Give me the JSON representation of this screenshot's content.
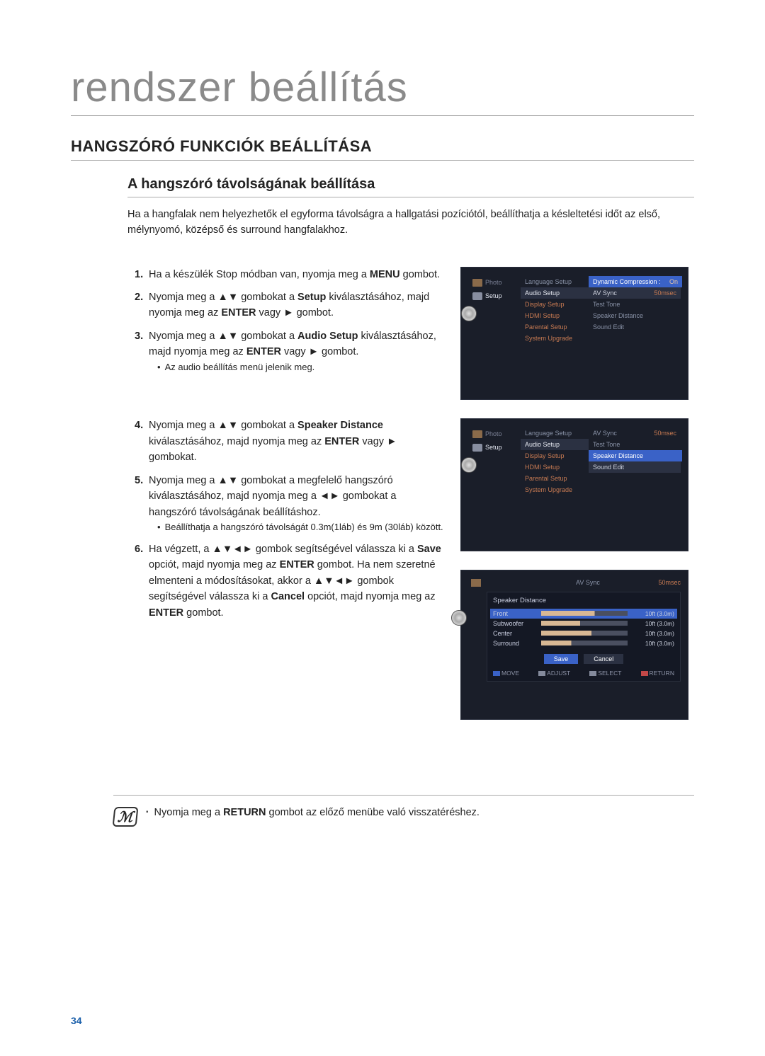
{
  "page": {
    "main_title": "rendszer beállítás",
    "section_title": "HANGSZÓRÓ FUNKCIÓK BEÁLLÍTÁSA",
    "sub_title": "A hangszóró távolságának beállítása",
    "intro": "Ha a hangfalak nem helyezhetők el egyforma távolságra a hallgatási pozíciótól, beállíthatja a késleltetési időt az első, mélynyomó, középső és surround hangfalakhoz."
  },
  "steps_a": [
    {
      "n": "1.",
      "html": "Ha a készülék Stop módban van, nyomja meg a <b>MENU</b> gombot."
    },
    {
      "n": "2.",
      "html": "Nyomja meg a ▲▼ gombokat a <b>Setup</b> kiválasztásához, majd nyomja meg az <b>ENTER</b> vagy ► gombot."
    },
    {
      "n": "3.",
      "html": "Nyomja meg a ▲▼ gombokat a <b>Audio Setup</b> kiválasztásához, majd nyomja meg az <b>ENTER</b> vagy ► gombot.",
      "bullet": "Az audio beállítás menü jelenik meg."
    }
  ],
  "steps_b": [
    {
      "n": "4.",
      "html": "Nyomja meg a ▲▼ gombokat a <b>Speaker Distance</b> kiválasztásához, majd nyomja meg az <b>ENTER</b> vagy ► gombokat."
    },
    {
      "n": "5.",
      "html": "Nyomja meg a ▲▼ gombokat a megfelelő hangszóró kiválasztásához, majd nyomja meg a ◄► gombokat a hangszóró távolságának beállításhoz.",
      "bullet": "Beállíthatja a hangszóró távolságát 0.3m(1láb) és 9m (30láb) között."
    },
    {
      "n": "6.",
      "html": "Ha végzett, a ▲▼◄► gombok segítségével válassza ki a <b>Save</b> opciót, majd nyomja meg az <b>ENTER</b> gombot. Ha nem szeretné elmenteni a módosításokat, akkor a ▲▼◄► gombok segítségével válassza ki a <b>Cancel</b> opciót, majd nyomja meg az <b>ENTER</b>  gombot."
    }
  ],
  "note": "Nyomja meg a RETURN gombot az előző menübe való visszatéréshez.",
  "page_number": "34",
  "osd_sidebar": {
    "photo": "Photo",
    "setup": "Setup"
  },
  "osd_mid_items": [
    "Language Setup",
    "Audio Setup",
    "Display Setup",
    "HDMI Setup",
    "Parental Setup",
    "System Upgrade"
  ],
  "osd1_right": [
    {
      "label": "Dynamic Compression :",
      "value": "On",
      "sel": true
    },
    {
      "label": "AV Sync",
      "value": "50msec",
      "hl": true
    },
    {
      "label": "Test Tone"
    },
    {
      "label": "Speaker Distance"
    },
    {
      "label": "Sound Edit"
    }
  ],
  "osd2_right": [
    {
      "label": "AV Sync",
      "value": "50msec"
    },
    {
      "label": "Test Tone"
    },
    {
      "label": "Speaker Distance",
      "sel": true
    },
    {
      "label": "Sound Edit",
      "hl": true
    }
  ],
  "osd3": {
    "bar_label": "AV Sync",
    "bar_value": "50msec",
    "title": "Speaker Distance",
    "rows": [
      {
        "label": "Front",
        "value": "10ft (3.0m)",
        "sel": true,
        "fill": "f1"
      },
      {
        "label": "Subwoofer",
        "value": "10ft (3.0m)",
        "fill": "f2"
      },
      {
        "label": "Center",
        "value": "10ft (3.0m)",
        "fill": "f3"
      },
      {
        "label": "Surround",
        "value": "10ft (3.0m)",
        "fill": "f4"
      }
    ],
    "save": "Save",
    "cancel": "Cancel",
    "footer": {
      "move": "MOVE",
      "adjust": "ADJUST",
      "select": "SELECT",
      "return": "RETURN"
    }
  },
  "colors": {
    "background": "#ffffff",
    "title_gray": "#8a8a8a",
    "text": "#222222",
    "rule": "#aaaaaa",
    "pagenum": "#1a5faa",
    "osd_bg": "#1a1e29",
    "osd_sel": "#3a62c7",
    "osd_orange": "#c77a52",
    "osd_muted": "#8a93a8",
    "osd_panel": "#141824",
    "slider_fill": "#d8b894",
    "slider_track": "#4a4f60"
  }
}
